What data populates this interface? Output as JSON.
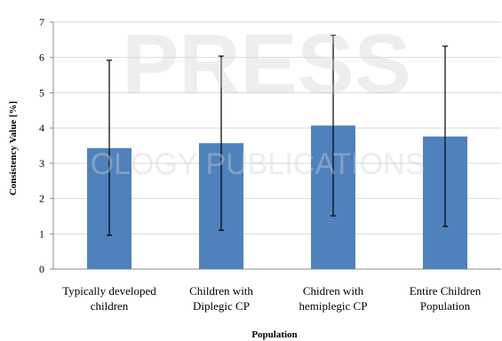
{
  "chart_data": {
    "type": "bar",
    "categories": [
      [
        "Typically developed",
        "children"
      ],
      [
        "Children with",
        "Diplegic CP"
      ],
      [
        "Chidren with",
        "hemiplegic CP"
      ],
      [
        "Entire Children",
        "Population"
      ]
    ],
    "values": [
      3.43,
      3.57,
      4.07,
      3.76
    ],
    "error_upper": [
      5.92,
      6.04,
      6.63,
      6.32
    ],
    "error_lower": [
      0.96,
      1.1,
      1.51,
      1.21
    ],
    "xlabel": "Population",
    "ylabel": "Consistency Value [%]",
    "ylim": [
      0,
      7
    ],
    "yticks": [
      "0",
      "1",
      "2",
      "3",
      "4",
      "5",
      "6",
      "7"
    ],
    "grid": true,
    "bar_color": "#4f81bd",
    "watermark": [
      "PRESS",
      "OLOGY PUBLICATIONS"
    ]
  }
}
